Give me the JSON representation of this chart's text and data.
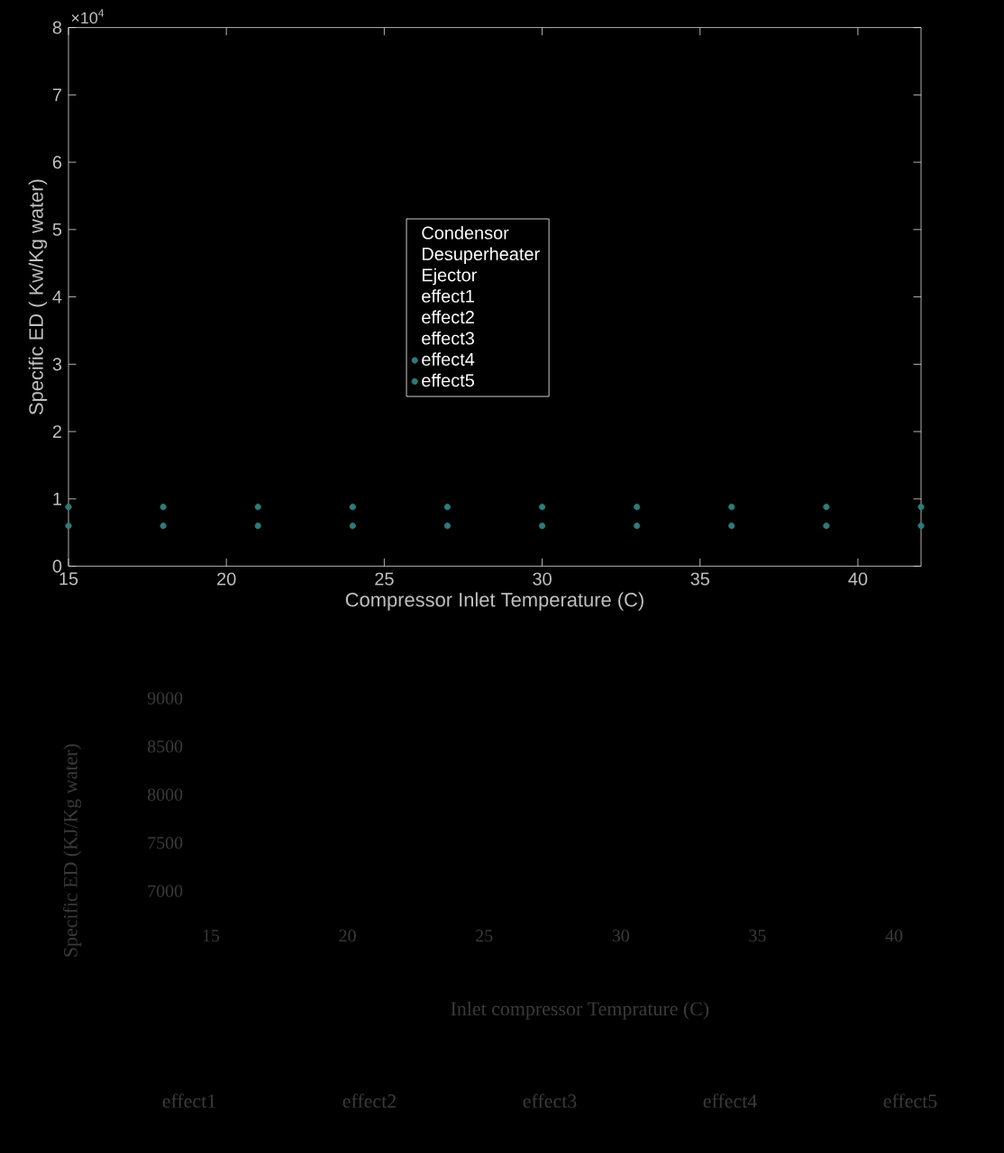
{
  "chart_data": [
    {
      "type": "scatter",
      "xlabel": "Compressor Inlet Temperature (C)",
      "ylabel": "Specific ED ( Kw/Kg water)",
      "x": [
        15,
        18,
        21,
        24,
        27,
        30,
        33,
        36,
        39,
        42
      ],
      "series": [
        {
          "name": "Condensor",
          "values": [
            null,
            null,
            null,
            null,
            null,
            null,
            null,
            null,
            null,
            null
          ]
        },
        {
          "name": "Desuperheater",
          "values": [
            null,
            null,
            null,
            null,
            null,
            null,
            null,
            null,
            null,
            null
          ]
        },
        {
          "name": "Ejector",
          "values": [
            null,
            null,
            null,
            null,
            null,
            null,
            null,
            null,
            null,
            null
          ]
        },
        {
          "name": "effect1",
          "values": [
            null,
            null,
            null,
            null,
            null,
            null,
            null,
            null,
            null,
            null
          ]
        },
        {
          "name": "effect2",
          "values": [
            null,
            null,
            null,
            null,
            null,
            null,
            null,
            null,
            null,
            null
          ]
        },
        {
          "name": "effect3",
          "values": [
            null,
            null,
            null,
            null,
            null,
            null,
            null,
            null,
            null,
            null
          ]
        },
        {
          "name": "effect4",
          "color": "#2e7b7b",
          "values": [
            0.88,
            0.88,
            0.88,
            0.88,
            0.88,
            0.88,
            0.88,
            0.88,
            0.88,
            0.88
          ]
        },
        {
          "name": "effect5",
          "color": "#2e7b7b",
          "values": [
            0.6,
            0.6,
            0.6,
            0.6,
            0.6,
            0.6,
            0.6,
            0.6,
            0.6,
            0.6
          ]
        }
      ],
      "xlim": [
        15,
        42
      ],
      "ylim": [
        0,
        8
      ],
      "xticks": [
        15,
        20,
        25,
        30,
        35,
        40
      ],
      "yticks": [
        0,
        1,
        2,
        3,
        4,
        5,
        6,
        7,
        8
      ],
      "annotations": [
        "×10$^{4}$"
      ],
      "legend": "center",
      "marker": "circle",
      "grid": false
    },
    {
      "type": "scatter",
      "xlabel": "Inlet compressor Temprature (C)",
      "ylabel": "Specific ED (KJ/Kg  water)",
      "xlim": [
        15,
        40
      ],
      "ylim": [
        7000,
        9000
      ],
      "xticks": [
        15,
        20,
        25,
        30,
        35,
        40
      ],
      "yticks": [
        7000,
        7500,
        8000,
        8500,
        9000
      ],
      "annotations": [
        "effect1",
        "effect2",
        "effect3",
        "effect4",
        "effect5"
      ]
    }
  ]
}
